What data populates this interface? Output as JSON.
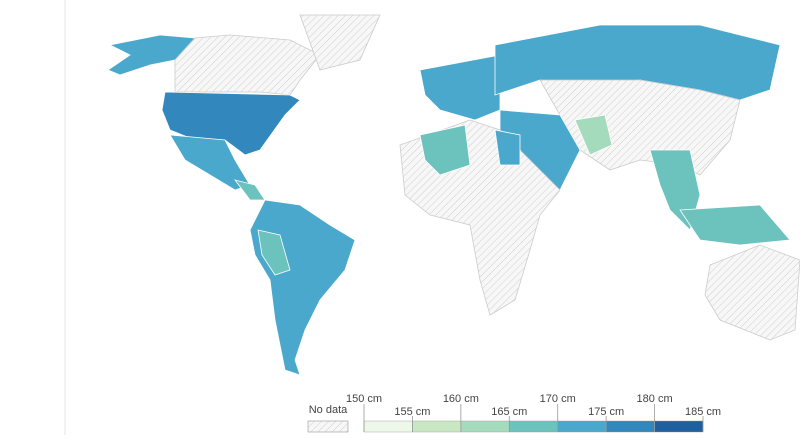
{
  "legend": {
    "no_data_label": "No data",
    "ticks": [
      {
        "value": 150,
        "label": "150 cm"
      },
      {
        "value": 155,
        "label": "155 cm"
      },
      {
        "value": 160,
        "label": "160 cm"
      },
      {
        "value": 165,
        "label": "165 cm"
      },
      {
        "value": 170,
        "label": "170 cm"
      },
      {
        "value": 175,
        "label": "175 cm"
      },
      {
        "value": 180,
        "label": "180 cm"
      },
      {
        "value": 185,
        "label": "185 cm"
      }
    ],
    "colors": [
      "#eef8ea",
      "#c8e8c4",
      "#a4dbbd",
      "#6cc3bd",
      "#4aa8cc",
      "#3288bd",
      "#1f5f9e"
    ]
  }
}
